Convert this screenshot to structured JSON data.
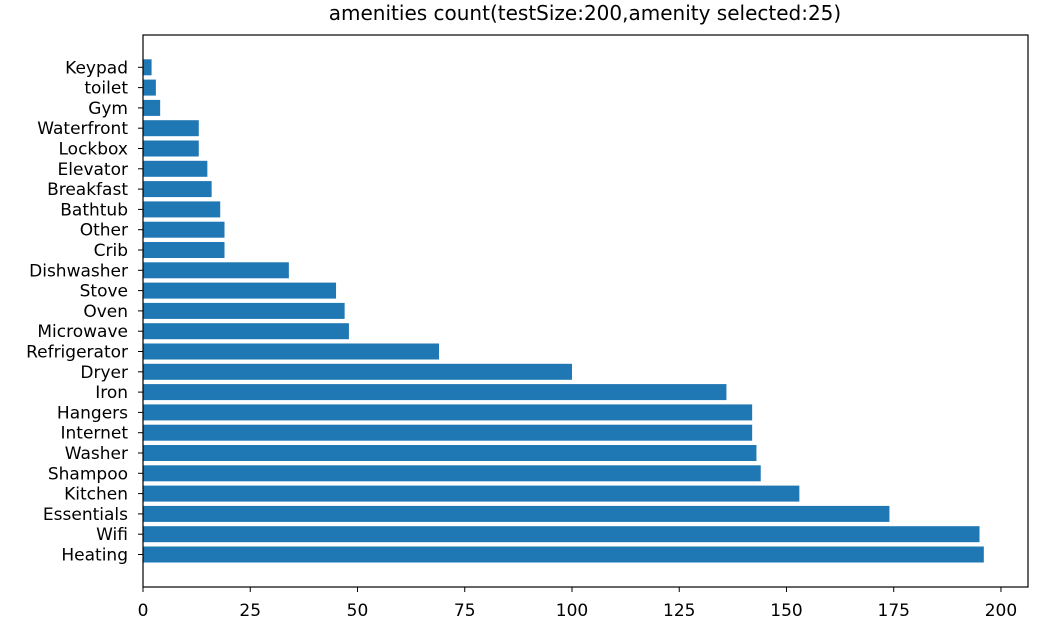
{
  "chart_data": {
    "type": "bar",
    "orientation": "horizontal",
    "title": "amenities count(testSize:200,amenity selected:25)",
    "xlabel": "",
    "ylabel": "",
    "xlim": [
      0,
      206.3
    ],
    "xticks": [
      0,
      25,
      50,
      75,
      100,
      125,
      150,
      175,
      200
    ],
    "grid": false,
    "bar_color": "#1f77b4",
    "categories": [
      "Heating",
      "Wifi",
      "Essentials",
      "Kitchen",
      "Shampoo",
      "Washer",
      "Internet",
      "Hangers",
      "Iron",
      "Dryer",
      "Refrigerator",
      "Microwave",
      "Oven",
      "Stove",
      "Dishwasher",
      "Crib",
      "Other",
      "Bathtub",
      "Breakfast",
      "Elevator",
      "Lockbox",
      "Waterfront",
      "Gym",
      "toilet",
      "Keypad"
    ],
    "values": [
      196,
      195,
      174,
      153,
      144,
      143,
      142,
      142,
      136,
      100,
      69,
      48,
      47,
      45,
      34,
      19,
      19,
      18,
      16,
      15,
      13,
      13,
      4,
      3,
      2
    ]
  }
}
